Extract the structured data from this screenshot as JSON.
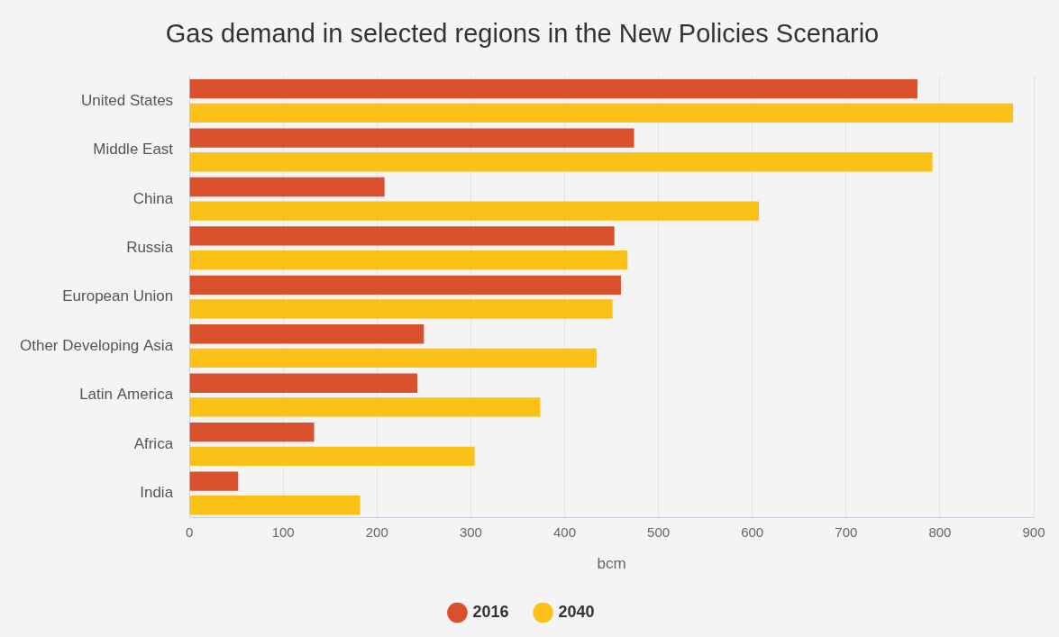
{
  "chart_data": {
    "type": "bar",
    "title": "Gas demand in selected regions in the New Policies Scenario",
    "orientation": "horizontal",
    "categories": [
      "United States",
      "Middle East",
      "China",
      "Russia",
      "European Union",
      "Other Developing Asia",
      "Latin America",
      "Africa",
      "India"
    ],
    "series": [
      {
        "name": "2016",
        "color": "#da4f2c",
        "values": [
          776,
          474,
          208,
          453,
          460,
          250,
          243,
          133,
          52
        ]
      },
      {
        "name": "2040",
        "color": "#fbc117",
        "values": [
          878,
          792,
          607,
          467,
          451,
          434,
          374,
          304,
          182
        ]
      }
    ],
    "x_label": "bcm",
    "xlim": [
      0,
      900
    ],
    "xticks": [
      0,
      100,
      200,
      300,
      400,
      500,
      600,
      700,
      800,
      900
    ],
    "grid": true,
    "legend": "bottom"
  }
}
